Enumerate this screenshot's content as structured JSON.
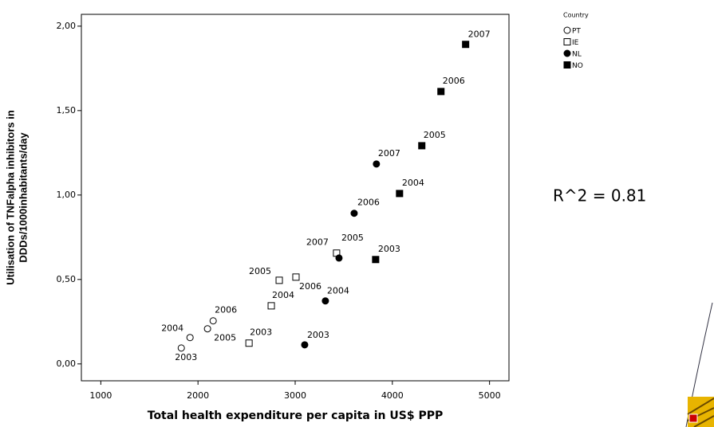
{
  "chart_data": {
    "type": "scatter",
    "xlabel": "Total health expenditure per capita in US$ PPP",
    "ylabel": [
      "Utilisation of TNFalpha inhibitors in",
      "DDDs/1000inhabitants/day"
    ],
    "annotation": "R^2 = 0.81",
    "legend_title": "Country",
    "legend": "top-right",
    "xlim": [
      800,
      5200
    ],
    "xticks": [
      1000,
      2000,
      3000,
      4000,
      5000
    ],
    "ylim": [
      -0.1,
      2.07
    ],
    "yticks": [
      {
        "value": 0,
        "label": "0,00"
      },
      {
        "value": 0.5,
        "label": "0,50"
      },
      {
        "value": 1,
        "label": "1,00"
      },
      {
        "value": 1.5,
        "label": "1,50"
      },
      {
        "value": 2,
        "label": "2,00"
      }
    ],
    "series": [
      {
        "name": "PT",
        "color": "#000000",
        "marker": "circle",
        "filled": false,
        "x": [
          1828,
          1918,
          2098,
          2156
        ],
        "values": [
          0.094,
          0.156,
          0.208,
          0.255
        ],
        "point_labels": [
          "2003",
          "2004",
          "2005",
          "2006"
        ]
      },
      {
        "name": "IE",
        "color": "#000000",
        "marker": "square",
        "filled": false,
        "x": [
          2525,
          2754,
          2836,
          3008,
          3426
        ],
        "values": [
          0.123,
          0.344,
          0.495,
          0.514,
          0.656
        ],
        "point_labels": [
          "2003",
          "2004",
          "2005",
          "2006",
          "2007"
        ]
      },
      {
        "name": "NL",
        "color": "#000000",
        "marker": "circle",
        "filled": true,
        "x": [
          3098,
          3311,
          3451,
          3607,
          3836
        ],
        "values": [
          0.113,
          0.373,
          0.627,
          0.892,
          1.184
        ],
        "point_labels": [
          "2003",
          "2004",
          "2005",
          "2006",
          "2007"
        ]
      },
      {
        "name": "NO",
        "color": "#000000",
        "marker": "square",
        "filled": true,
        "x": [
          3828,
          4074,
          4303,
          4500,
          4754
        ],
        "values": [
          0.618,
          1.009,
          1.292,
          1.613,
          1.892
        ],
        "point_labels": [
          "2003",
          "2004",
          "2005",
          "2006",
          "2007"
        ]
      }
    ]
  }
}
